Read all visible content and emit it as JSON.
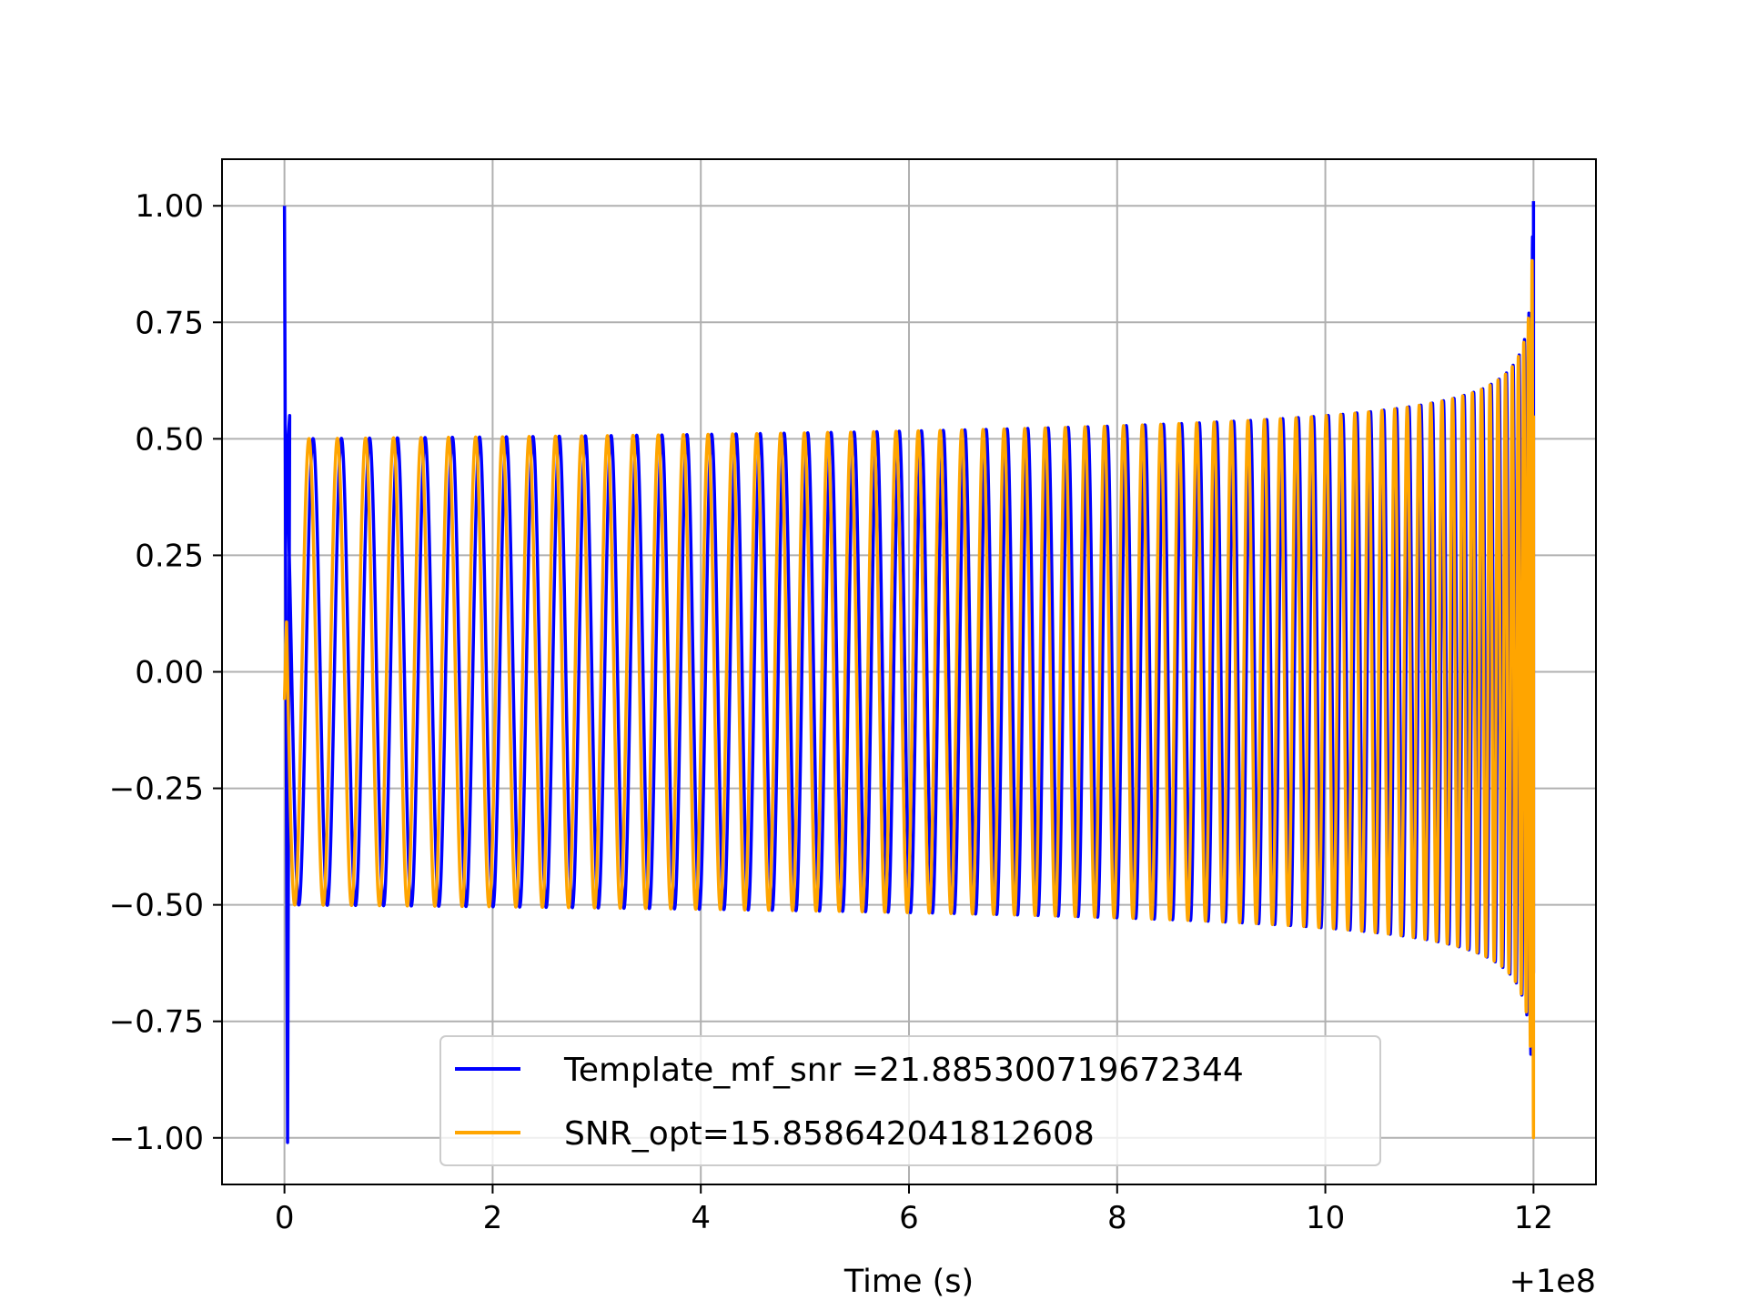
{
  "chart_data": {
    "type": "line",
    "title": "",
    "xlabel": "Time (s)",
    "ylabel": "",
    "x_offset_label": "+1e8",
    "xlim": [
      -0.6,
      12.6
    ],
    "ylim": [
      -1.1,
      1.1
    ],
    "x_ticks": [
      0,
      2,
      4,
      6,
      8,
      10,
      12
    ],
    "x_tick_labels": [
      "0",
      "2",
      "4",
      "6",
      "8",
      "10",
      "12"
    ],
    "y_ticks": [
      1.0,
      0.75,
      0.5,
      0.25,
      0.0,
      -0.25,
      -0.5,
      -0.75,
      -1.0
    ],
    "y_tick_labels": [
      "1.00",
      "0.75",
      "0.50",
      "0.25",
      "0.00",
      "−0.25",
      "−0.50",
      "−0.75",
      "−1.00"
    ],
    "grid": true,
    "legend_position": "lower-center",
    "x_range_data": [
      0,
      12
    ],
    "series": [
      {
        "name": "Template_mf_snr =21.885300719672344",
        "color": "#0000ff",
        "description_values": {
          "initial_spike_max": 1.0,
          "initial_spike_min": -1.01,
          "envelope_start": 0.5,
          "envelope_end": 1.0,
          "final_peak": 1.01
        }
      },
      {
        "name": "SNR_opt=15.858642041812608",
        "color": "#ffa500",
        "description_values": {
          "start_value": -0.06,
          "envelope_start": 0.5,
          "envelope_end": 1.0,
          "final_value": 0.55
        }
      }
    ],
    "legend": [
      {
        "label": "Template_mf_snr =21.885300719672344",
        "color": "#0000ff"
      },
      {
        "label": "SNR_opt=15.858642041812608",
        "color": "#ffa500"
      }
    ]
  }
}
